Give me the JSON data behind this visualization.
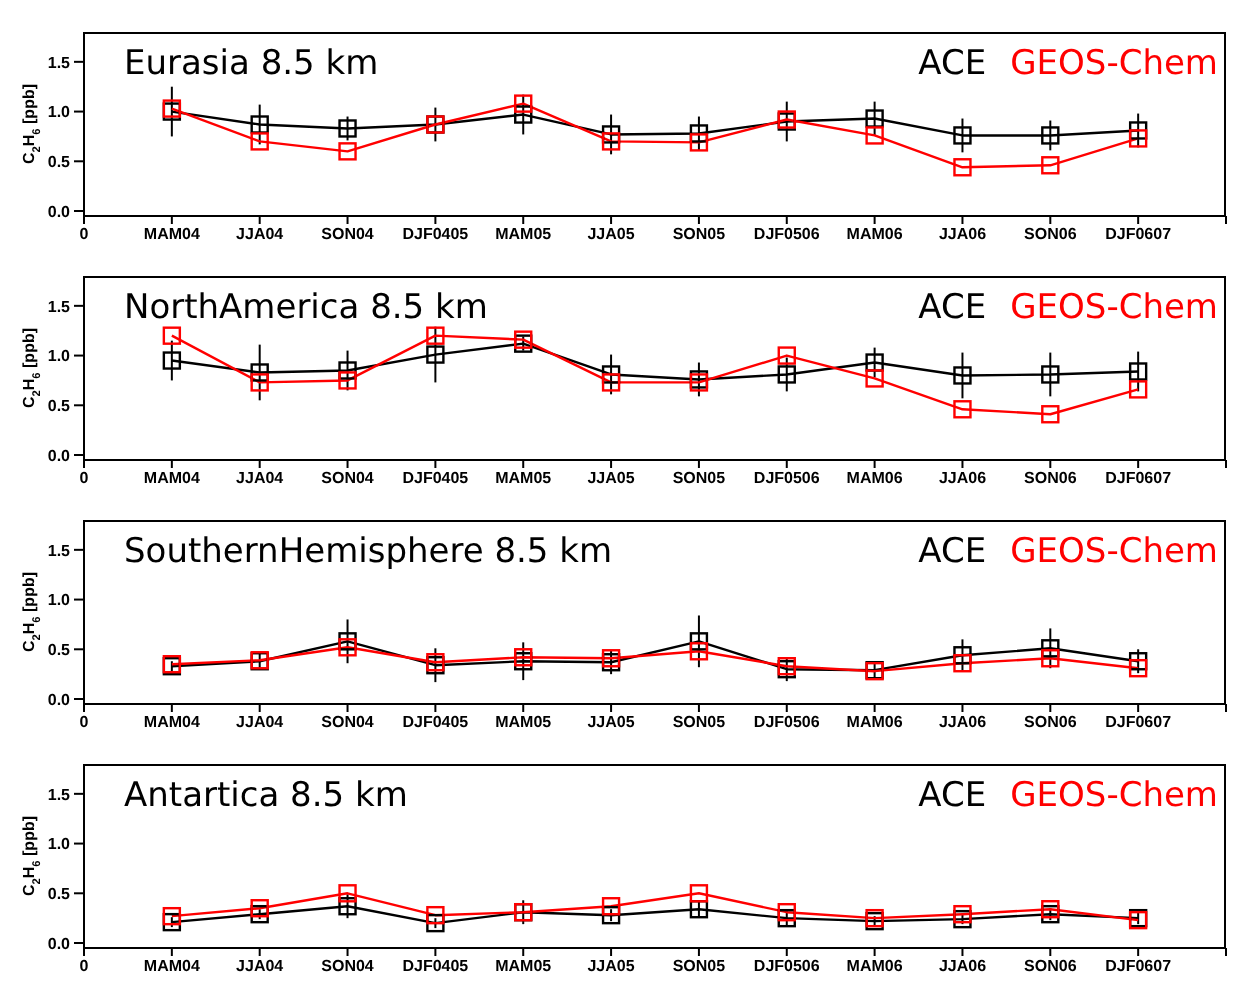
{
  "chart_data": [
    {
      "type": "line",
      "title": "Eurasia 8.5 km",
      "ylabel": "C$_{2}$H$_{6}$ [ppb]",
      "legend": "top right",
      "marker": "square",
      "line_style": "solid",
      "grid": false,
      "categories": [
        "0",
        "MAM04",
        "JJA04",
        "SON04",
        "DJF0405",
        "MAM05",
        "JJA05",
        "SON05",
        "DJF0506",
        "MAM06",
        "JJA06",
        "SON06",
        "DJF0607",
        null
      ],
      "ylim": [
        -0.05,
        1.8
      ],
      "yticks": [
        {
          "value": 0,
          "label": "0.0"
        },
        {
          "value": 0.5,
          "label": "0.5"
        },
        {
          "value": 1,
          "label": "1.0"
        },
        {
          "value": 1.5,
          "label": "1.5"
        }
      ],
      "series": [
        {
          "name": "ACE",
          "color": "#000000",
          "values": [
            null,
            1.0,
            0.87,
            0.83,
            0.87,
            0.97,
            0.77,
            0.78,
            0.9,
            0.93,
            0.76,
            0.76,
            0.81,
            null
          ],
          "errors": [
            null,
            0.25,
            0.2,
            0.12,
            0.17,
            0.2,
            0.2,
            0.17,
            0.2,
            0.17,
            0.17,
            0.15,
            0.17,
            null
          ]
        },
        {
          "name": "GEOS-Chem",
          "color": "#ff0000",
          "values": [
            null,
            1.03,
            0.7,
            0.6,
            0.87,
            1.08,
            0.7,
            0.69,
            0.92,
            0.76,
            0.44,
            0.46,
            0.73,
            null
          ]
        }
      ]
    },
    {
      "type": "line",
      "title": "NorthAmerica 8.5 km",
      "ylabel": "C$_{2}$H$_{6}$ [ppb]",
      "legend": "top right",
      "marker": "square",
      "line_style": "solid",
      "grid": false,
      "categories": [
        "0",
        "MAM04",
        "JJA04",
        "SON04",
        "DJF0405",
        "MAM05",
        "JJA05",
        "SON05",
        "DJF0506",
        "MAM06",
        "JJA06",
        "SON06",
        "DJF0607",
        null
      ],
      "ylim": [
        -0.05,
        1.8
      ],
      "yticks": [
        {
          "value": 0,
          "label": "0.0"
        },
        {
          "value": 0.5,
          "label": "0.5"
        },
        {
          "value": 1,
          "label": "1.0"
        },
        {
          "value": 1.5,
          "label": "1.5"
        }
      ],
      "series": [
        {
          "name": "ACE",
          "color": "#000000",
          "values": [
            null,
            0.95,
            0.83,
            0.85,
            1.01,
            1.12,
            0.81,
            0.76,
            0.81,
            0.93,
            0.8,
            0.81,
            0.84,
            null
          ],
          "errors": [
            null,
            0.2,
            0.28,
            0.2,
            0.28,
            0.07,
            0.2,
            0.17,
            0.17,
            0.15,
            0.23,
            0.22,
            0.2,
            null
          ]
        },
        {
          "name": "GEOS-Chem",
          "color": "#ff0000",
          "values": [
            null,
            1.2,
            0.73,
            0.75,
            1.2,
            1.16,
            0.73,
            0.73,
            1.0,
            0.77,
            0.46,
            0.41,
            0.66,
            null
          ]
        }
      ]
    },
    {
      "type": "line",
      "title": "SouthernHemisphere 8.5 km",
      "ylabel": "C$_{2}$H$_{6}$ [ppb]",
      "legend": "top right",
      "marker": "square",
      "line_style": "solid",
      "grid": false,
      "categories": [
        "0",
        "MAM04",
        "JJA04",
        "SON04",
        "DJF0405",
        "MAM05",
        "JJA05",
        "SON05",
        "DJF0506",
        "MAM06",
        "JJA06",
        "SON06",
        "DJF0607",
        null
      ],
      "ylim": [
        -0.05,
        1.8
      ],
      "yticks": [
        {
          "value": 0,
          "label": "0.0"
        },
        {
          "value": 0.5,
          "label": "0.5"
        },
        {
          "value": 1,
          "label": "1.0"
        },
        {
          "value": 1.5,
          "label": "1.5"
        }
      ],
      "series": [
        {
          "name": "ACE",
          "color": "#000000",
          "values": [
            null,
            0.33,
            0.38,
            0.58,
            0.34,
            0.38,
            0.37,
            0.58,
            0.3,
            0.29,
            0.44,
            0.51,
            0.38,
            null
          ],
          "errors": [
            null,
            0.05,
            0.08,
            0.22,
            0.17,
            0.19,
            0.12,
            0.26,
            0.12,
            0.07,
            0.16,
            0.2,
            0.12,
            null
          ]
        },
        {
          "name": "GEOS-Chem",
          "color": "#ff0000",
          "values": [
            null,
            0.35,
            0.39,
            0.52,
            0.37,
            0.42,
            0.41,
            0.48,
            0.33,
            0.28,
            0.36,
            0.41,
            0.31,
            null
          ]
        }
      ]
    },
    {
      "type": "line",
      "title": "Antartica 8.5 km",
      "ylabel": "C$_{2}$H$_{6}$ [ppb]",
      "legend": "top right",
      "marker": "square",
      "line_style": "solid",
      "grid": false,
      "categories": [
        "0",
        "MAM04",
        "JJA04",
        "SON04",
        "DJF0405",
        "MAM05",
        "JJA05",
        "SON05",
        "DJF0506",
        "MAM06",
        "JJA06",
        "SON06",
        "DJF0607",
        null
      ],
      "ylim": [
        -0.05,
        1.8
      ],
      "yticks": [
        {
          "value": 0,
          "label": "0.0"
        },
        {
          "value": 0.5,
          "label": "0.5"
        },
        {
          "value": 1,
          "label": "1.0"
        },
        {
          "value": 1.5,
          "label": "1.5"
        }
      ],
      "series": [
        {
          "name": "ACE",
          "color": "#000000",
          "values": [
            null,
            0.21,
            0.29,
            0.37,
            0.2,
            0.31,
            0.28,
            0.34,
            0.25,
            0.22,
            0.24,
            0.29,
            0.25,
            null
          ],
          "errors": [
            null,
            0.05,
            0.05,
            0.12,
            0.05,
            0.12,
            0.06,
            0.08,
            0.07,
            0.05,
            0.05,
            0.06,
            0.06,
            null
          ]
        },
        {
          "name": "GEOS-Chem",
          "color": "#ff0000",
          "values": [
            null,
            0.27,
            0.35,
            0.5,
            0.28,
            0.31,
            0.37,
            0.5,
            0.31,
            0.25,
            0.29,
            0.34,
            0.23,
            null
          ]
        }
      ]
    }
  ]
}
